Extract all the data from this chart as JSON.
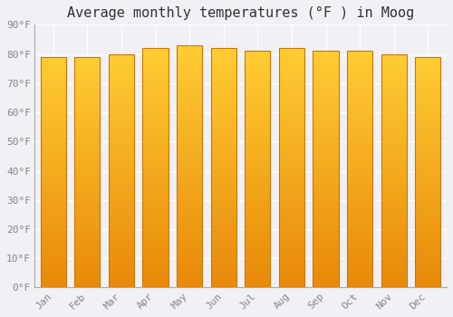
{
  "title": "Average monthly temperatures (°F ) in Moog",
  "months": [
    "Jan",
    "Feb",
    "Mar",
    "Apr",
    "May",
    "Jun",
    "Jul",
    "Aug",
    "Sep",
    "Oct",
    "Nov",
    "Dec"
  ],
  "values": [
    79,
    79,
    80,
    82,
    83,
    82,
    81,
    82,
    81,
    81,
    80,
    79
  ],
  "ylim": [
    0,
    90
  ],
  "yticks": [
    0,
    10,
    20,
    30,
    40,
    50,
    60,
    70,
    80,
    90
  ],
  "ytick_labels": [
    "0°F",
    "10°F",
    "20°F",
    "30°F",
    "40°F",
    "50°F",
    "60°F",
    "70°F",
    "80°F",
    "90°F"
  ],
  "bar_color_bottom": "#E8890A",
  "bar_color_top": "#FFCC33",
  "bar_edge_color": "#CC7700",
  "background_color": "#f0f0f5",
  "plot_bg_color": "#f0f0f5",
  "grid_color": "#ffffff",
  "title_fontsize": 11,
  "tick_fontsize": 8,
  "title_color": "#333333",
  "tick_color": "#888888"
}
